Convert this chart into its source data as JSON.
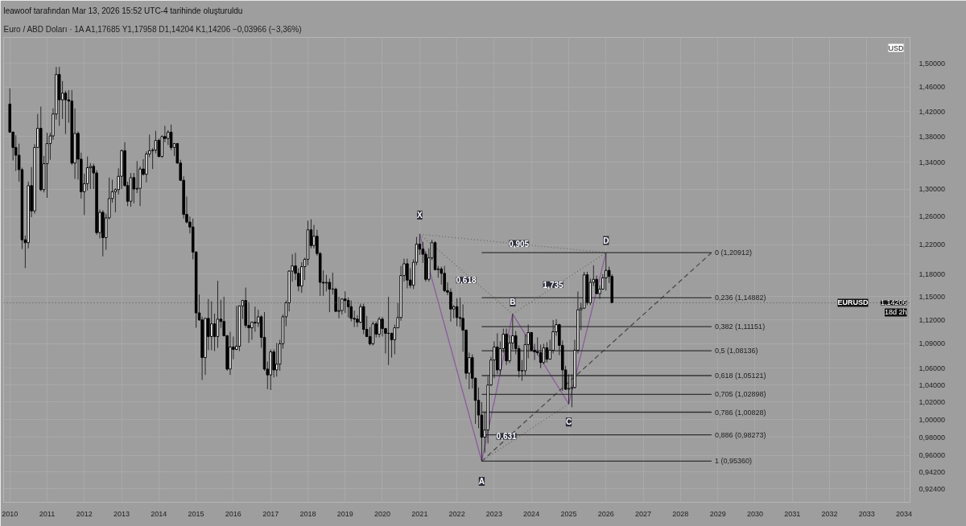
{
  "chart_data": {
    "type": "candlestick",
    "title": "leawoof tarafından Mar 13, 2026 15:52 UTC-4 tarihinde oluşturuldu",
    "subtitle": "Euro / ABD Doları · 1A   A1,17685  Y1,17958  D1,14204  K1,14206  −0,03966 (−3,36%)",
    "log": "y",
    "grid": true,
    "xlim": [
      "2009-11",
      "2034-03"
    ],
    "xticks": [
      "2010",
      "2011",
      "2012",
      "2013",
      "2014",
      "2015",
      "2016",
      "2017",
      "2018",
      "2019",
      "2020",
      "2021",
      "2022",
      "2023",
      "2024",
      "2025",
      "2026",
      "2027",
      "2028",
      "2029",
      "2030",
      "2031",
      "2032",
      "2033",
      "2034"
    ],
    "ylim": [
      0.91,
      1.545
    ],
    "yticks": [
      {
        "value": 0.924,
        "label": "0,92400"
      },
      {
        "value": 0.942,
        "label": "0,94200"
      },
      {
        "value": 0.96,
        "label": "0,96000"
      },
      {
        "value": 0.98,
        "label": "0,98000"
      },
      {
        "value": 1.0,
        "label": "1,00000"
      },
      {
        "value": 1.02,
        "label": "1,02000"
      },
      {
        "value": 1.04,
        "label": "1,04000"
      },
      {
        "value": 1.06,
        "label": "1,06000"
      },
      {
        "value": 1.09,
        "label": "1,09000"
      },
      {
        "value": 1.12,
        "label": "1,12000"
      },
      {
        "value": 1.15,
        "label": "1,15000"
      },
      {
        "value": 1.18,
        "label": "1,18000"
      },
      {
        "value": 1.22,
        "label": "1,22000"
      },
      {
        "value": 1.26,
        "label": "1,26000"
      },
      {
        "value": 1.3,
        "label": "1,30000"
      },
      {
        "value": 1.34,
        "label": "1,34000"
      },
      {
        "value": 1.38,
        "label": "1,38000"
      },
      {
        "value": 1.42,
        "label": "1,42000"
      },
      {
        "value": 1.46,
        "label": "1,46000"
      },
      {
        "value": 1.5,
        "label": "1,50000"
      }
    ],
    "x": [
      "2010-01",
      "2010-02",
      "2010-03",
      "2010-04",
      "2010-05",
      "2010-06",
      "2010-07",
      "2010-08",
      "2010-09",
      "2010-10",
      "2010-11",
      "2010-12",
      "2011-01",
      "2011-02",
      "2011-03",
      "2011-04",
      "2011-05",
      "2011-06",
      "2011-07",
      "2011-08",
      "2011-09",
      "2011-10",
      "2011-11",
      "2011-12",
      "2012-01",
      "2012-02",
      "2012-03",
      "2012-04",
      "2012-05",
      "2012-06",
      "2012-07",
      "2012-08",
      "2012-09",
      "2012-10",
      "2012-11",
      "2012-12",
      "2013-01",
      "2013-02",
      "2013-03",
      "2013-04",
      "2013-05",
      "2013-06",
      "2013-07",
      "2013-08",
      "2013-09",
      "2013-10",
      "2013-11",
      "2013-12",
      "2014-01",
      "2014-02",
      "2014-03",
      "2014-04",
      "2014-05",
      "2014-06",
      "2014-07",
      "2014-08",
      "2014-09",
      "2014-10",
      "2014-11",
      "2014-12",
      "2015-01",
      "2015-02",
      "2015-03",
      "2015-04",
      "2015-05",
      "2015-06",
      "2015-07",
      "2015-08",
      "2015-09",
      "2015-10",
      "2015-11",
      "2015-12",
      "2016-01",
      "2016-02",
      "2016-03",
      "2016-04",
      "2016-05",
      "2016-06",
      "2016-07",
      "2016-08",
      "2016-09",
      "2016-10",
      "2016-11",
      "2016-12",
      "2017-01",
      "2017-02",
      "2017-03",
      "2017-04",
      "2017-05",
      "2017-06",
      "2017-07",
      "2017-08",
      "2017-09",
      "2017-10",
      "2017-11",
      "2017-12",
      "2018-01",
      "2018-02",
      "2018-03",
      "2018-04",
      "2018-05",
      "2018-06",
      "2018-07",
      "2018-08",
      "2018-09",
      "2018-10",
      "2018-11",
      "2018-12",
      "2019-01",
      "2019-02",
      "2019-03",
      "2019-04",
      "2019-05",
      "2019-06",
      "2019-07",
      "2019-08",
      "2019-09",
      "2019-10",
      "2019-11",
      "2019-12",
      "2020-01",
      "2020-02",
      "2020-03",
      "2020-04",
      "2020-05",
      "2020-06",
      "2020-07",
      "2020-08",
      "2020-09",
      "2020-10",
      "2020-11",
      "2020-12",
      "2021-01",
      "2021-02",
      "2021-03",
      "2021-04",
      "2021-05",
      "2021-06",
      "2021-07",
      "2021-08",
      "2021-09",
      "2021-10",
      "2021-11",
      "2021-12",
      "2022-01",
      "2022-02",
      "2022-03",
      "2022-04",
      "2022-05",
      "2022-06",
      "2022-07",
      "2022-08",
      "2022-09",
      "2022-10",
      "2022-11",
      "2022-12",
      "2023-01",
      "2023-02",
      "2023-03",
      "2023-04",
      "2023-05",
      "2023-06",
      "2023-07",
      "2023-08",
      "2023-09",
      "2023-10",
      "2023-11",
      "2023-12",
      "2024-01",
      "2024-02",
      "2024-03",
      "2024-04",
      "2024-05",
      "2024-06",
      "2024-07",
      "2024-08",
      "2024-09",
      "2024-10",
      "2024-11",
      "2024-12",
      "2025-01",
      "2025-02",
      "2025-03",
      "2025-04",
      "2025-05",
      "2025-06",
      "2025-07",
      "2025-08",
      "2025-09",
      "2025-10",
      "2025-11",
      "2025-12",
      "2026-01",
      "2026-02",
      "2026-03"
    ],
    "ohlc": [
      [
        1.432,
        1.458,
        1.386,
        1.387
      ],
      [
        1.387,
        1.388,
        1.343,
        1.363
      ],
      [
        1.363,
        1.382,
        1.327,
        1.351
      ],
      [
        1.351,
        1.369,
        1.311,
        1.329
      ],
      [
        1.329,
        1.332,
        1.214,
        1.227
      ],
      [
        1.227,
        1.233,
        1.188,
        1.223
      ],
      [
        1.223,
        1.311,
        1.215,
        1.305
      ],
      [
        1.305,
        1.333,
        1.259,
        1.268
      ],
      [
        1.268,
        1.368,
        1.264,
        1.363
      ],
      [
        1.363,
        1.416,
        1.363,
        1.393
      ],
      [
        1.393,
        1.428,
        1.297,
        1.299
      ],
      [
        1.299,
        1.35,
        1.295,
        1.338
      ],
      [
        1.338,
        1.386,
        1.287,
        1.369
      ],
      [
        1.369,
        1.386,
        1.344,
        1.381
      ],
      [
        1.381,
        1.425,
        1.375,
        1.416
      ],
      [
        1.416,
        1.494,
        1.407,
        1.481
      ],
      [
        1.481,
        1.494,
        1.397,
        1.439
      ],
      [
        1.439,
        1.47,
        1.408,
        1.45
      ],
      [
        1.45,
        1.454,
        1.384,
        1.439
      ],
      [
        1.439,
        1.455,
        1.402,
        1.437
      ],
      [
        1.437,
        1.455,
        1.336,
        1.339
      ],
      [
        1.339,
        1.425,
        1.315,
        1.385
      ],
      [
        1.385,
        1.388,
        1.314,
        1.345
      ],
      [
        1.345,
        1.355,
        1.286,
        1.296
      ],
      [
        1.296,
        1.323,
        1.262,
        1.308
      ],
      [
        1.308,
        1.349,
        1.298,
        1.332
      ],
      [
        1.332,
        1.339,
        1.3,
        1.334
      ],
      [
        1.334,
        1.338,
        1.3,
        1.324
      ],
      [
        1.324,
        1.328,
        1.234,
        1.237
      ],
      [
        1.237,
        1.27,
        1.229,
        1.266
      ],
      [
        1.266,
        1.269,
        1.204,
        1.23
      ],
      [
        1.23,
        1.264,
        1.213,
        1.258
      ],
      [
        1.258,
        1.317,
        1.256,
        1.286
      ],
      [
        1.286,
        1.314,
        1.28,
        1.296
      ],
      [
        1.296,
        1.301,
        1.266,
        1.299
      ],
      [
        1.299,
        1.331,
        1.292,
        1.319
      ],
      [
        1.319,
        1.36,
        1.3,
        1.358
      ],
      [
        1.358,
        1.371,
        1.304,
        1.305
      ],
      [
        1.305,
        1.311,
        1.275,
        1.282
      ],
      [
        1.282,
        1.324,
        1.274,
        1.317
      ],
      [
        1.317,
        1.324,
        1.279,
        1.3
      ],
      [
        1.3,
        1.342,
        1.294,
        1.301
      ],
      [
        1.301,
        1.334,
        1.275,
        1.33
      ],
      [
        1.33,
        1.345,
        1.32,
        1.322
      ],
      [
        1.322,
        1.357,
        1.31,
        1.353
      ],
      [
        1.353,
        1.383,
        1.348,
        1.358
      ],
      [
        1.358,
        1.362,
        1.33,
        1.359
      ],
      [
        1.359,
        1.389,
        1.354,
        1.374
      ],
      [
        1.374,
        1.377,
        1.348,
        1.349
      ],
      [
        1.349,
        1.382,
        1.347,
        1.38
      ],
      [
        1.38,
        1.397,
        1.371,
        1.377
      ],
      [
        1.377,
        1.39,
        1.367,
        1.387
      ],
      [
        1.387,
        1.399,
        1.359,
        1.363
      ],
      [
        1.363,
        1.37,
        1.35,
        1.369
      ],
      [
        1.369,
        1.37,
        1.338,
        1.339
      ],
      [
        1.339,
        1.344,
        1.312,
        1.313
      ],
      [
        1.313,
        1.319,
        1.257,
        1.263
      ],
      [
        1.263,
        1.289,
        1.25,
        1.252
      ],
      [
        1.252,
        1.26,
        1.236,
        1.245
      ],
      [
        1.245,
        1.257,
        1.2,
        1.21
      ],
      [
        1.21,
        1.211,
        1.11,
        1.129
      ],
      [
        1.129,
        1.153,
        1.119,
        1.12
      ],
      [
        1.12,
        1.124,
        1.046,
        1.073
      ],
      [
        1.073,
        1.122,
        1.052,
        1.122
      ],
      [
        1.122,
        1.147,
        1.082,
        1.099
      ],
      [
        1.099,
        1.144,
        1.082,
        1.115
      ],
      [
        1.115,
        1.128,
        1.081,
        1.099
      ],
      [
        1.099,
        1.171,
        1.085,
        1.121
      ],
      [
        1.121,
        1.146,
        1.11,
        1.118
      ],
      [
        1.118,
        1.15,
        1.099,
        1.1
      ],
      [
        1.1,
        1.101,
        1.057,
        1.059
      ],
      [
        1.059,
        1.105,
        1.052,
        1.086
      ],
      [
        1.086,
        1.099,
        1.071,
        1.083
      ],
      [
        1.083,
        1.138,
        1.082,
        1.087
      ],
      [
        1.087,
        1.138,
        1.081,
        1.138
      ],
      [
        1.138,
        1.146,
        1.121,
        1.145
      ],
      [
        1.145,
        1.162,
        1.11,
        1.113
      ],
      [
        1.113,
        1.143,
        1.091,
        1.11
      ],
      [
        1.11,
        1.118,
        1.095,
        1.117
      ],
      [
        1.117,
        1.137,
        1.105,
        1.116
      ],
      [
        1.116,
        1.133,
        1.111,
        1.124
      ],
      [
        1.124,
        1.126,
        1.085,
        1.098
      ],
      [
        1.098,
        1.13,
        1.057,
        1.059
      ],
      [
        1.059,
        1.068,
        1.035,
        1.052
      ],
      [
        1.052,
        1.083,
        1.034,
        1.08
      ],
      [
        1.08,
        1.083,
        1.049,
        1.058
      ],
      [
        1.058,
        1.091,
        1.05,
        1.065
      ],
      [
        1.065,
        1.095,
        1.057,
        1.09
      ],
      [
        1.09,
        1.127,
        1.084,
        1.124
      ],
      [
        1.124,
        1.145,
        1.112,
        1.142
      ],
      [
        1.142,
        1.185,
        1.131,
        1.184
      ],
      [
        1.184,
        1.207,
        1.17,
        1.191
      ],
      [
        1.191,
        1.209,
        1.172,
        1.181
      ],
      [
        1.181,
        1.188,
        1.157,
        1.164
      ],
      [
        1.164,
        1.196,
        1.155,
        1.19
      ],
      [
        1.19,
        1.202,
        1.172,
        1.2
      ],
      [
        1.2,
        1.254,
        1.192,
        1.241
      ],
      [
        1.241,
        1.256,
        1.215,
        1.219
      ],
      [
        1.219,
        1.248,
        1.215,
        1.232
      ],
      [
        1.232,
        1.241,
        1.205,
        1.208
      ],
      [
        1.208,
        1.21,
        1.151,
        1.169
      ],
      [
        1.169,
        1.185,
        1.151,
        1.168
      ],
      [
        1.168,
        1.179,
        1.157,
        1.169
      ],
      [
        1.169,
        1.174,
        1.13,
        1.16
      ],
      [
        1.16,
        1.182,
        1.153,
        1.16
      ],
      [
        1.16,
        1.162,
        1.13,
        1.131
      ],
      [
        1.131,
        1.15,
        1.122,
        1.132
      ],
      [
        1.132,
        1.148,
        1.127,
        1.147
      ],
      [
        1.147,
        1.157,
        1.129,
        1.145
      ],
      [
        1.145,
        1.149,
        1.123,
        1.137
      ],
      [
        1.137,
        1.145,
        1.118,
        1.122
      ],
      [
        1.122,
        1.132,
        1.111,
        1.121
      ],
      [
        1.121,
        1.126,
        1.111,
        1.117
      ],
      [
        1.117,
        1.141,
        1.116,
        1.137
      ],
      [
        1.137,
        1.141,
        1.102,
        1.108
      ],
      [
        1.108,
        1.125,
        1.099,
        1.099
      ],
      [
        1.099,
        1.111,
        1.088,
        1.09
      ],
      [
        1.09,
        1.118,
        1.088,
        1.115
      ],
      [
        1.115,
        1.118,
        1.098,
        1.102
      ],
      [
        1.102,
        1.124,
        1.098,
        1.121
      ],
      [
        1.121,
        1.124,
        1.099,
        1.109
      ],
      [
        1.109,
        1.11,
        1.078,
        1.103
      ],
      [
        1.103,
        1.15,
        1.064,
        1.103
      ],
      [
        1.103,
        1.104,
        1.073,
        1.095
      ],
      [
        1.095,
        1.114,
        1.077,
        1.11
      ],
      [
        1.11,
        1.142,
        1.11,
        1.123
      ],
      [
        1.123,
        1.191,
        1.119,
        1.178
      ],
      [
        1.178,
        1.201,
        1.17,
        1.194
      ],
      [
        1.194,
        1.201,
        1.161,
        1.172
      ],
      [
        1.172,
        1.188,
        1.161,
        1.165
      ],
      [
        1.165,
        1.2,
        1.16,
        1.196
      ],
      [
        1.196,
        1.231,
        1.192,
        1.221
      ],
      [
        1.221,
        1.2349,
        1.206,
        1.214
      ],
      [
        1.214,
        1.224,
        1.195,
        1.207
      ],
      [
        1.207,
        1.211,
        1.17,
        1.173
      ],
      [
        1.173,
        1.215,
        1.17,
        1.202
      ],
      [
        1.202,
        1.227,
        1.199,
        1.223
      ],
      [
        1.223,
        1.225,
        1.185,
        1.186
      ],
      [
        1.186,
        1.191,
        1.175,
        1.187
      ],
      [
        1.187,
        1.19,
        1.166,
        1.181
      ],
      [
        1.181,
        1.191,
        1.156,
        1.158
      ],
      [
        1.158,
        1.169,
        1.152,
        1.156
      ],
      [
        1.156,
        1.161,
        1.118,
        1.134
      ],
      [
        1.134,
        1.139,
        1.122,
        1.137
      ],
      [
        1.137,
        1.148,
        1.112,
        1.123
      ],
      [
        1.123,
        1.149,
        1.111,
        1.122
      ],
      [
        1.122,
        1.14,
        1.08,
        1.107
      ],
      [
        1.107,
        1.108,
        1.047,
        1.054
      ],
      [
        1.054,
        1.079,
        1.035,
        1.073
      ],
      [
        1.073,
        1.077,
        1.036,
        1.048
      ],
      [
        1.048,
        1.049,
        0.995,
        1.022
      ],
      [
        1.022,
        1.037,
        0.99,
        1.005
      ],
      [
        1.005,
        1.02,
        0.9536,
        0.98
      ],
      [
        0.98,
        1.009,
        0.963,
        0.988
      ],
      [
        0.988,
        1.05,
        0.973,
        1.04
      ],
      [
        1.04,
        1.074,
        1.039,
        1.07
      ],
      [
        1.07,
        1.093,
        1.048,
        1.086
      ],
      [
        1.086,
        1.103,
        1.053,
        1.058
      ],
      [
        1.058,
        1.093,
        1.052,
        1.084
      ],
      [
        1.084,
        1.109,
        1.079,
        1.102
      ],
      [
        1.102,
        1.109,
        1.064,
        1.069
      ],
      [
        1.069,
        1.101,
        1.066,
        1.091
      ],
      [
        1.091,
        1.1276,
        1.083,
        1.1
      ],
      [
        1.1,
        1.106,
        1.077,
        1.084
      ],
      [
        1.084,
        1.088,
        1.049,
        1.057
      ],
      [
        1.057,
        1.07,
        1.045,
        1.057
      ],
      [
        1.057,
        1.102,
        1.052,
        1.089
      ],
      [
        1.089,
        1.114,
        1.072,
        1.104
      ],
      [
        1.104,
        1.105,
        1.08,
        1.082
      ],
      [
        1.082,
        1.09,
        1.07,
        1.08
      ],
      [
        1.08,
        1.098,
        1.076,
        1.079
      ],
      [
        1.079,
        1.089,
        1.06,
        1.067
      ],
      [
        1.067,
        1.09,
        1.065,
        1.085
      ],
      [
        1.085,
        1.092,
        1.067,
        1.071
      ],
      [
        1.071,
        1.095,
        1.071,
        1.082
      ],
      [
        1.082,
        1.12,
        1.078,
        1.105
      ],
      [
        1.105,
        1.121,
        1.1,
        1.114
      ],
      [
        1.114,
        1.115,
        1.076,
        1.088
      ],
      [
        1.088,
        1.094,
        1.033,
        1.058
      ],
      [
        1.058,
        1.063,
        1.034,
        1.035
      ],
      [
        1.035,
        1.053,
        1.0178,
        1.036
      ],
      [
        1.036,
        1.053,
        1.014,
        1.037
      ],
      [
        1.037,
        1.095,
        1.036,
        1.082
      ],
      [
        1.082,
        1.157,
        1.078,
        1.133
      ],
      [
        1.133,
        1.142,
        1.107,
        1.135
      ],
      [
        1.135,
        1.183,
        1.135,
        1.179
      ],
      [
        1.179,
        1.183,
        1.139,
        1.142
      ],
      [
        1.142,
        1.174,
        1.139,
        1.169
      ],
      [
        1.169,
        1.192,
        1.164,
        1.173
      ],
      [
        1.173,
        1.178,
        1.154,
        1.154
      ],
      [
        1.154,
        1.165,
        1.147,
        1.16
      ],
      [
        1.16,
        1.18,
        1.159,
        1.175
      ],
      [
        1.175,
        1.20912,
        1.158,
        1.185
      ],
      [
        1.185,
        1.19,
        1.168,
        1.17685
      ],
      [
        1.17685,
        1.17958,
        1.14204,
        1.14206
      ]
    ],
    "series": [
      {
        "type": "line",
        "color": "#8a5c9c",
        "x": [
          "2021-01",
          "2022-09",
          "2023-07",
          "2025-01",
          "2026-01"
        ],
        "values": [
          1.2349,
          0.9536,
          1.1276,
          1.0178,
          1.20912
        ]
      },
      {
        "type": "line",
        "color": "#6a6a6a",
        "line_style": "dotted",
        "x": [
          "2021-01",
          "2023-07"
        ],
        "values": [
          1.2349,
          1.1276
        ]
      },
      {
        "type": "line",
        "color": "#6a6a6a",
        "line_style": "dotted",
        "x": [
          "2023-07",
          "2026-01"
        ],
        "values": [
          1.1276,
          1.20912
        ]
      },
      {
        "type": "line",
        "color": "#6a6a6a",
        "line_style": "dotted",
        "x": [
          "2021-01",
          "2026-01"
        ],
        "values": [
          1.2349,
          1.20912
        ]
      },
      {
        "type": "line",
        "color": "#6a6a6a",
        "line_style": "dotted",
        "x": [
          "2022-09",
          "2025-01"
        ],
        "values": [
          0.9536,
          1.0178
        ]
      },
      {
        "type": "line",
        "color": "#4a4a4a",
        "line_style": "dashed",
        "x": [
          "2022-09",
          "2028-11"
        ],
        "values": [
          0.9536,
          1.20912
        ]
      },
      {
        "type": "line",
        "name": "0 (1,20912)",
        "color": "#333333",
        "x": [
          "2022-09",
          "2028-11"
        ],
        "values": [
          1.20912,
          1.20912
        ]
      },
      {
        "type": "line",
        "name": "0,236 (1,14882)",
        "color": "#333333",
        "x": [
          "2022-09",
          "2028-11"
        ],
        "values": [
          1.14882,
          1.14882
        ]
      },
      {
        "type": "line",
        "name": "0,382 (1,11151)",
        "color": "#333333",
        "x": [
          "2022-09",
          "2028-11"
        ],
        "values": [
          1.11151,
          1.11151
        ]
      },
      {
        "type": "line",
        "name": "0,5 (1,08136)",
        "color": "#333333",
        "x": [
          "2022-09",
          "2028-11"
        ],
        "values": [
          1.08136,
          1.08136
        ]
      },
      {
        "type": "line",
        "name": "0,618 (1,05121)",
        "color": "#333333",
        "x": [
          "2022-09",
          "2028-11"
        ],
        "values": [
          1.05121,
          1.05121
        ]
      },
      {
        "type": "line",
        "name": "0,705 (1,02898)",
        "color": "#333333",
        "x": [
          "2022-09",
          "2028-11"
        ],
        "values": [
          1.02898,
          1.02898
        ]
      },
      {
        "type": "line",
        "name": "0,786 (1,00828)",
        "color": "#333333",
        "x": [
          "2022-09",
          "2028-11"
        ],
        "values": [
          1.00828,
          1.00828
        ]
      },
      {
        "type": "line",
        "name": "0,886 (0,98273)",
        "color": "#333333",
        "x": [
          "2022-09",
          "2028-11"
        ],
        "values": [
          0.98273,
          0.98273
        ]
      },
      {
        "type": "line",
        "name": "1 (0,95360)",
        "color": "#333333",
        "x": [
          "2022-09",
          "2028-11"
        ],
        "values": [
          0.9536,
          0.9536
        ]
      }
    ],
    "ref_lines": [
      {
        "axis": "y",
        "value": 1.14206,
        "label": "EURUSD",
        "color": "#555555",
        "line_style": "dotted"
      }
    ],
    "annotations": [
      {
        "text": "X",
        "x": "2021-01",
        "y": 1.262
      },
      {
        "text": "A",
        "x": "2022-09",
        "y": 0.932
      },
      {
        "text": "B",
        "x": "2023-07",
        "y": 1.143
      },
      {
        "text": "C",
        "x": "2025-01",
        "y": 0.997
      },
      {
        "text": "D",
        "x": "2026-01",
        "y": 1.226
      },
      {
        "text": "0,905",
        "x": "2023-09",
        "y": 1.222
      },
      {
        "text": "0,618",
        "x": "2022-04",
        "y": 1.172
      },
      {
        "text": "1,735",
        "x": "2024-08",
        "y": 1.166
      },
      {
        "text": "0,631",
        "x": "2023-05",
        "y": 0.981
      },
      "USD",
      "1,14206",
      "18d 2h"
    ]
  }
}
